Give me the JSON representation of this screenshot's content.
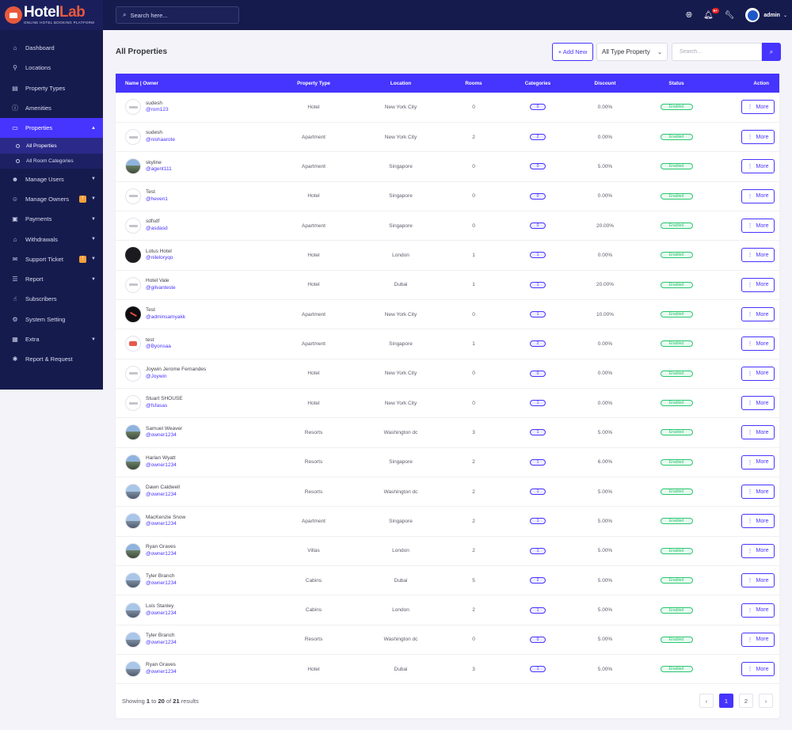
{
  "brand": {
    "name_a": "Hotel",
    "name_b": "Lab",
    "tagline": "ONLINE HOTEL BOOKING PLATFORM"
  },
  "topbar": {
    "search_placeholder": "Search here...",
    "notification_count": "9+",
    "admin_name": "admin"
  },
  "sidebar": {
    "items": [
      {
        "label": "Dashboard",
        "icon": "dashboard-icon",
        "glyph": "⌂"
      },
      {
        "label": "Locations",
        "icon": "map-pin-icon",
        "glyph": "⚲"
      },
      {
        "label": "Property Types",
        "icon": "list-icon",
        "glyph": "▤"
      },
      {
        "label": "Amenities",
        "icon": "info-icon",
        "glyph": "ⓘ"
      },
      {
        "label": "Properties",
        "icon": "building-icon",
        "glyph": "▭"
      },
      {
        "label": "Manage Users",
        "icon": "users-icon",
        "glyph": "☻"
      },
      {
        "label": "Manage Owners",
        "icon": "owners-icon",
        "glyph": "☺",
        "badge": "!"
      },
      {
        "label": "Payments",
        "icon": "credit-card-icon",
        "glyph": "▣"
      },
      {
        "label": "Withdrawals",
        "icon": "bank-icon",
        "glyph": "⌂"
      },
      {
        "label": "Support Ticket",
        "icon": "ticket-icon",
        "glyph": "✉",
        "badge": "!"
      },
      {
        "label": "Report",
        "icon": "report-icon",
        "glyph": "☰"
      },
      {
        "label": "Subscribers",
        "icon": "thumbs-up-icon",
        "glyph": "☝"
      },
      {
        "label": "System Setting",
        "icon": "gear-icon",
        "glyph": "⚙"
      },
      {
        "label": "Extra",
        "icon": "server-icon",
        "glyph": "▦"
      },
      {
        "label": "Report & Request",
        "icon": "bug-icon",
        "glyph": "✱"
      }
    ],
    "sub_items": [
      {
        "label": "All Properties"
      },
      {
        "label": "All Room Categories"
      }
    ]
  },
  "page": {
    "title": "All Properties",
    "add_new_label": "+ Add New",
    "type_select_value": "All Type Property",
    "search_placeholder": "Search..."
  },
  "table": {
    "headers": [
      "Name | Owner",
      "Property Type",
      "Location",
      "Rooms",
      "Categories",
      "Discount",
      "Status",
      "Action"
    ],
    "rows": [
      {
        "name": "sudesh",
        "owner": "@rom123",
        "type": "Hotel",
        "location": "New York City",
        "rooms": "0",
        "categories": "0",
        "discount": "0.00%",
        "status": "Enabled",
        "thumb": "logo"
      },
      {
        "name": "sudesh",
        "owner": "@nishaarote",
        "type": "Apartment",
        "location": "New York City",
        "rooms": "2",
        "categories": "2",
        "discount": "0.00%",
        "status": "Enabled",
        "thumb": "logo"
      },
      {
        "name": "skyline",
        "owner": "@agent111",
        "type": "Apartment",
        "location": "Singapore",
        "rooms": "0",
        "categories": "0",
        "discount": "5.00%",
        "status": "Enabled",
        "thumb": "photo"
      },
      {
        "name": "Test",
        "owner": "@heven1",
        "type": "Hotel",
        "location": "Singapore",
        "rooms": "0",
        "categories": "0",
        "discount": "0.00%",
        "status": "Enabled",
        "thumb": "logo"
      },
      {
        "name": "sdfsdf",
        "owner": "@asdasd",
        "type": "Apartment",
        "location": "Singapore",
        "rooms": "0",
        "categories": "0",
        "discount": "20.00%",
        "status": "Enabled",
        "thumb": "logo"
      },
      {
        "name": "Lotus Hotel",
        "owner": "@nileloryqo",
        "type": "Hotel",
        "location": "London",
        "rooms": "1",
        "categories": "1",
        "discount": "0.00%",
        "status": "Enabled",
        "thumb": "dark"
      },
      {
        "name": "Hotel Vale",
        "owner": "@gilvanteste",
        "type": "Hotel",
        "location": "Dubai",
        "rooms": "1",
        "categories": "1",
        "discount": "20.00%",
        "status": "Enabled",
        "thumb": "logo"
      },
      {
        "name": "Test",
        "owner": "@adminsamyakk",
        "type": "Apartment",
        "location": "New York City",
        "rooms": "0",
        "categories": "1",
        "discount": "10.00%",
        "status": "Enabled",
        "thumb": "black"
      },
      {
        "name": "test",
        "owner": "@Byonsaa",
        "type": "Apartment",
        "location": "Singapore",
        "rooms": "1",
        "categories": "2",
        "discount": "0.00%",
        "status": "Enabled",
        "thumb": "red"
      },
      {
        "name": "Joywin Jerome Fernandes",
        "owner": "@Joywin",
        "type": "Hotel",
        "location": "New York City",
        "rooms": "0",
        "categories": "0",
        "discount": "0.00%",
        "status": "Enabled",
        "thumb": "logo"
      },
      {
        "name": "Stuart SHOUSE",
        "owner": "@fsfasas",
        "type": "Hotel",
        "location": "New York City",
        "rooms": "0",
        "categories": "1",
        "discount": "0.00%",
        "status": "Enabled",
        "thumb": "logo"
      },
      {
        "name": "Samuel Weaver",
        "owner": "@owner1234",
        "type": "Resorts",
        "location": "Washington dc",
        "rooms": "3",
        "categories": "1",
        "discount": "5.00%",
        "status": "Enabled",
        "thumb": "photo"
      },
      {
        "name": "Harlan Wyatt",
        "owner": "@owner1234",
        "type": "Resorts",
        "location": "Singapore",
        "rooms": "2",
        "categories": "1",
        "discount": "6.00%",
        "status": "Enabled",
        "thumb": "photo"
      },
      {
        "name": "Dawn Caldwell",
        "owner": "@owner1234",
        "type": "Resorts",
        "location": "Washington dc",
        "rooms": "2",
        "categories": "1",
        "discount": "5.00%",
        "status": "Enabled",
        "thumb": "city"
      },
      {
        "name": "MacKenzie Snow",
        "owner": "@owner1234",
        "type": "Apartment",
        "location": "Singapore",
        "rooms": "2",
        "categories": "1",
        "discount": "5.00%",
        "status": "Enabled",
        "thumb": "city"
      },
      {
        "name": "Ryan Graves",
        "owner": "@owner1234",
        "type": "Villas",
        "location": "London",
        "rooms": "2",
        "categories": "1",
        "discount": "5.00%",
        "status": "Enabled",
        "thumb": "photo"
      },
      {
        "name": "Tyler Branch",
        "owner": "@owner1234",
        "type": "Cabins",
        "location": "Dubai",
        "rooms": "5",
        "categories": "2",
        "discount": "5.00%",
        "status": "Enabled",
        "thumb": "city"
      },
      {
        "name": "Lois Stanley",
        "owner": "@owner1234",
        "type": "Cabins",
        "location": "London",
        "rooms": "2",
        "categories": "1",
        "discount": "5.00%",
        "status": "Enabled",
        "thumb": "city"
      },
      {
        "name": "Tyler Branch",
        "owner": "@owner1234",
        "type": "Resorts",
        "location": "Washington dc",
        "rooms": "0",
        "categories": "0",
        "discount": "5.00%",
        "status": "Enabled",
        "thumb": "city"
      },
      {
        "name": "Ryan Graves",
        "owner": "@owner1234",
        "type": "Hotel",
        "location": "Dubai",
        "rooms": "3",
        "categories": "1",
        "discount": "5.00%",
        "status": "Enabled",
        "thumb": "city"
      }
    ],
    "more_label": "More"
  },
  "footer": {
    "showing_prefix": "Showing",
    "from": "1",
    "to_word": "to",
    "to": "20",
    "of_word": "of",
    "total": "21",
    "results_word": "results",
    "pages": [
      "‹",
      "1",
      "2",
      "›"
    ],
    "active_page": "1"
  },
  "colors": {
    "accent": "#4634ff",
    "sidebar": "#161b4e",
    "brand": "#e8593b",
    "status": "#28c76f"
  }
}
